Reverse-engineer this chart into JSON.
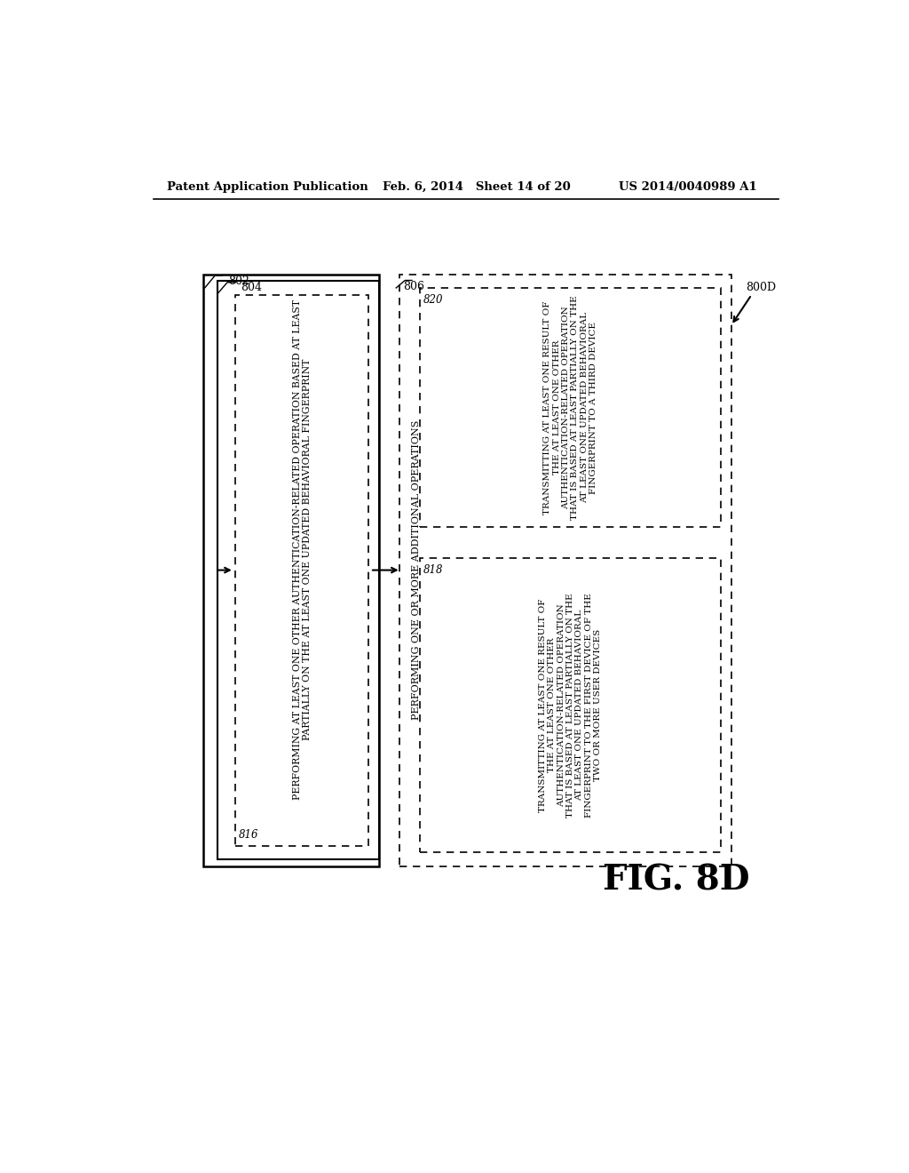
{
  "header_left": "Patent Application Publication",
  "header_mid": "Feb. 6, 2014   Sheet 14 of 20",
  "header_right": "US 2014/0040989 A1",
  "fig_label": "FIG. 8D",
  "fig_id": "800D",
  "label_802": "802",
  "label_804": "804",
  "label_816": "816",
  "label_806": "806",
  "label_818": "818",
  "label_820": "820",
  "text_816": "PERFORMING AT LEAST ONE OTHER AUTHENTICATION-RELATED OPERATION BASED AT LEAST\nPARTIALLY ON THE AT LEAST ONE UPDATED BEHAVIORAL FINGERPRINT",
  "text_806_vert": "PERFORMING ONE OR MORE ADDITIONAL OPERATIONS",
  "text_818": "TRANSMITTING AT LEAST ONE RESULT OF\nTHE AT LEAST ONE OTHER\nAUTHENTICATION-RELATED OPERATION\nTHAT IS BASED AT LEAST PARTIALLY ON THE\nAT LEAST ONE UPDATED BEHAVIORAL\nFINGERPRINT TO THE FIRST DEVICE OF THE\nTWO OR MORE USER DEVICES",
  "text_820": "TRANSMITTING AT LEAST ONE RESULT OF\nTHE AT LEAST ONE OTHER\nAUTHENTICATION-RELATED OPERATION\nTHAT IS BASED AT LEAST PARTIALLY ON THE\nAT LEAST ONE UPDATED BEHAVIORAL\nFINGERPRINT TO A THIRD DEVICE",
  "bg_color": "#ffffff",
  "text_color": "#000000"
}
